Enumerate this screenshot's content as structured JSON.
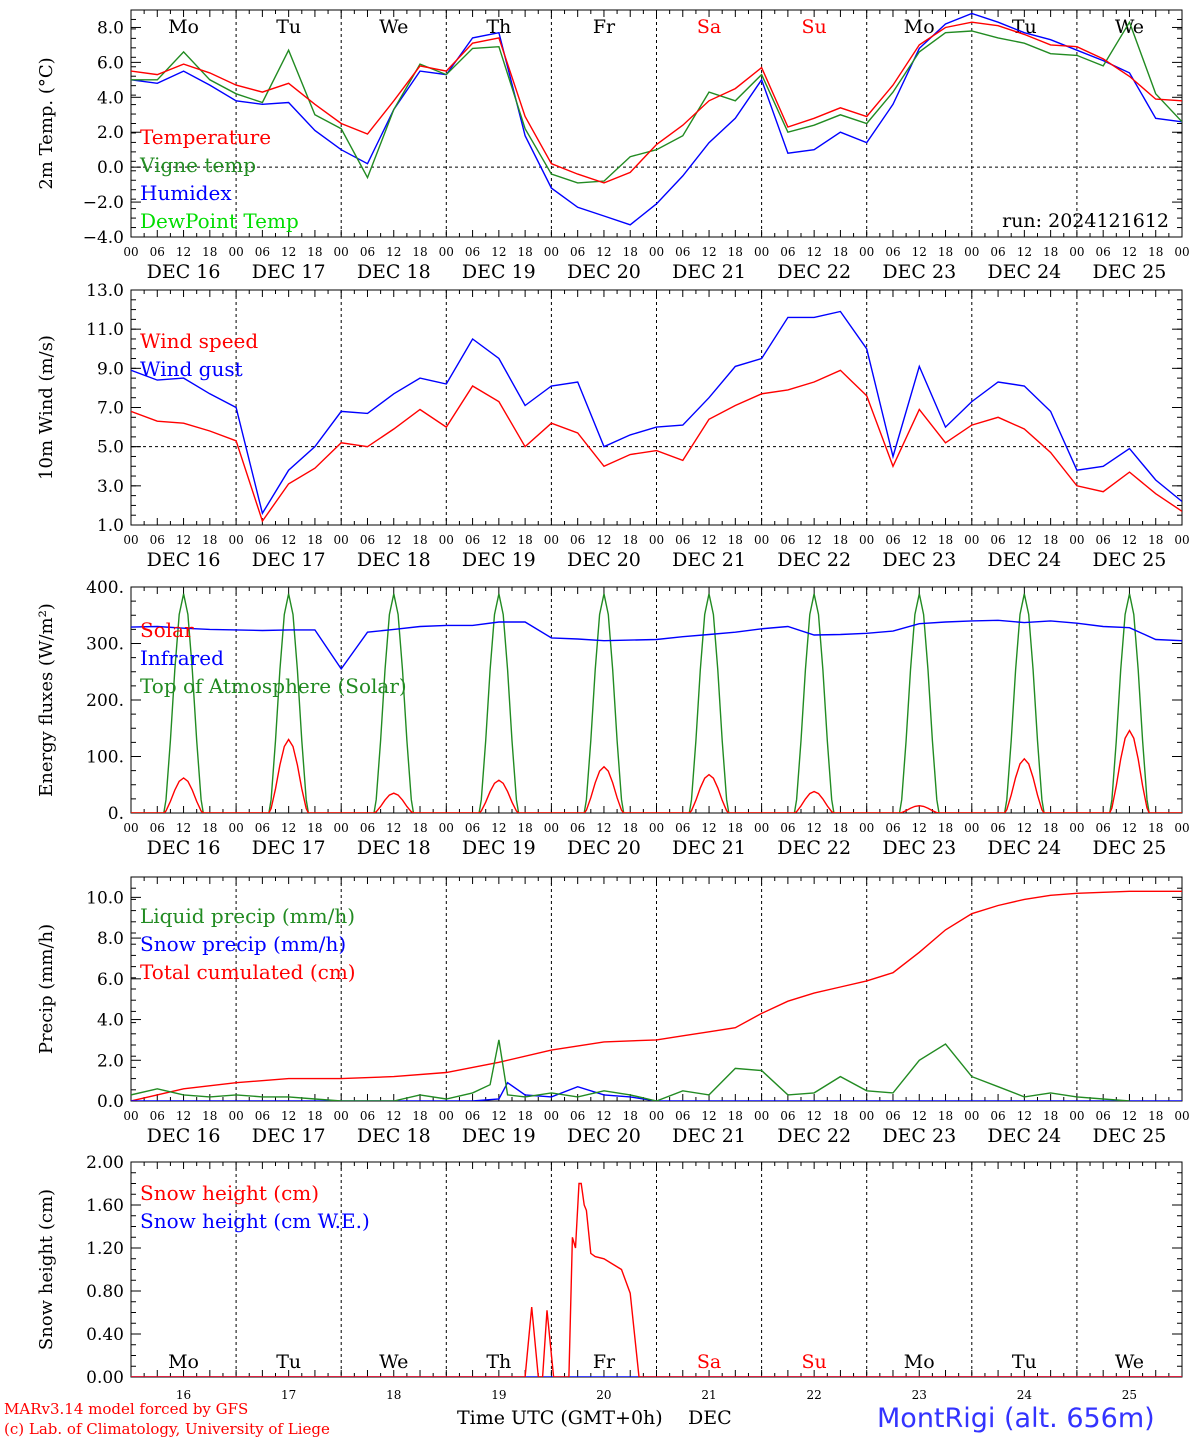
{
  "chart_data": {
    "station": "MontRigi (alt. 656m)",
    "run": "run: 2024121612",
    "footer": [
      "MARv3.14 model forced by GFS",
      "(c) Lab. of Climatology, University of Liege"
    ],
    "x_title": "Time UTC (GMT+0h)",
    "x_month": "DEC",
    "days": [
      {
        "wd": "Mo",
        "date": "DEC 16",
        "num": "16",
        "weekend": false
      },
      {
        "wd": "Tu",
        "date": "DEC 17",
        "num": "17",
        "weekend": false
      },
      {
        "wd": "We",
        "date": "DEC 18",
        "num": "18",
        "weekend": false
      },
      {
        "wd": "Th",
        "date": "DEC 19",
        "num": "19",
        "weekend": false
      },
      {
        "wd": "Fr",
        "date": "DEC 20",
        "num": "20",
        "weekend": false
      },
      {
        "wd": "Sa",
        "date": "DEC 21",
        "num": "21",
        "weekend": true
      },
      {
        "wd": "Su",
        "date": "DEC 22",
        "num": "22",
        "weekend": true
      },
      {
        "wd": "Mo",
        "date": "DEC 23",
        "num": "23",
        "weekend": false
      },
      {
        "wd": "Tu",
        "date": "DEC 24",
        "num": "24",
        "weekend": false
      },
      {
        "wd": "We",
        "date": "DEC 25",
        "num": "25",
        "weekend": false
      }
    ],
    "hour_labels": [
      "00",
      "06",
      "12",
      "18"
    ],
    "end_hour_label": "00",
    "panels": [
      {
        "type": "line",
        "ylabel": "2m Temp. (°C)",
        "ylim": [
          -4,
          9
        ],
        "yticks": [
          -4,
          -2,
          0,
          2,
          4,
          6,
          8
        ],
        "ytick_labels": [
          "−4.0",
          "−2.0",
          "0.0",
          "2.0",
          "4.0",
          "6.0",
          "8.0"
        ],
        "ref_line": 0,
        "show_weekdays": true,
        "show_run": true,
        "series": [
          {
            "name": "Temperature",
            "color": "#ff0000",
            "t": [
              0,
              6,
              12,
              18,
              24,
              30,
              36,
              42,
              48,
              54,
              60,
              66,
              72,
              78,
              84,
              90,
              96,
              102,
              108,
              114,
              120,
              126,
              132,
              138,
              144,
              150,
              156,
              162,
              168,
              174,
              180,
              186,
              192,
              198,
              204,
              210,
              216,
              222,
              228,
              234,
              240
            ],
            "v": [
              5.5,
              5.3,
              5.9,
              5.4,
              4.7,
              4.3,
              4.8,
              3.6,
              2.5,
              1.9,
              3.8,
              5.8,
              5.5,
              7.1,
              7.4,
              2.9,
              0.2,
              -0.4,
              -0.9,
              -0.3,
              1.3,
              2.4,
              3.8,
              4.5,
              5.7,
              2.3,
              2.8,
              3.4,
              2.9,
              4.7,
              7.0,
              8.0,
              8.3,
              8.1,
              7.6,
              7.0,
              6.9,
              6.2,
              5.2,
              3.9,
              3.8
            ]
          },
          {
            "name": "Vigne temp",
            "color": "#228b22",
            "t": [
              0,
              6,
              12,
              18,
              24,
              30,
              36,
              42,
              48,
              54,
              60,
              66,
              72,
              78,
              84,
              90,
              96,
              102,
              108,
              114,
              120,
              126,
              132,
              138,
              144,
              150,
              156,
              162,
              168,
              174,
              180,
              186,
              192,
              198,
              204,
              210,
              216,
              222,
              228,
              234,
              240
            ],
            "v": [
              5.0,
              5.0,
              6.6,
              5.0,
              4.2,
              3.7,
              6.7,
              3.0,
              2.2,
              -0.6,
              3.3,
              5.9,
              5.3,
              6.8,
              6.9,
              2.2,
              -0.4,
              -0.9,
              -0.8,
              0.6,
              1.0,
              1.8,
              4.3,
              3.8,
              5.3,
              2.0,
              2.4,
              3.0,
              2.5,
              4.3,
              6.6,
              7.7,
              7.8,
              7.4,
              7.1,
              6.5,
              6.4,
              5.8,
              8.3,
              4.2,
              2.6
            ]
          },
          {
            "name": "Humidex",
            "color": "#0000ff",
            "t": [
              0,
              6,
              12,
              18,
              24,
              30,
              36,
              42,
              48,
              54,
              60,
              66,
              72,
              78,
              84,
              90,
              96,
              102,
              108,
              114,
              120,
              126,
              132,
              138,
              144,
              150,
              156,
              162,
              168,
              174,
              180,
              186,
              192,
              198,
              204,
              210,
              216,
              222,
              228,
              234,
              240
            ],
            "v": [
              5.0,
              4.8,
              5.5,
              4.7,
              3.8,
              3.6,
              3.7,
              2.1,
              1.0,
              0.2,
              3.3,
              5.5,
              5.3,
              7.4,
              7.7,
              1.8,
              -1.2,
              -2.3,
              -2.8,
              -3.3,
              -2.1,
              -0.5,
              1.4,
              2.8,
              5.0,
              0.8,
              1.0,
              2.0,
              1.4,
              3.6,
              6.8,
              8.2,
              8.8,
              8.3,
              7.7,
              7.3,
              6.7,
              6.1,
              5.4,
              2.8,
              2.6
            ]
          },
          {
            "name": "DewPoint Temp",
            "color": "#00dd00",
            "t": [],
            "v": []
          }
        ]
      },
      {
        "type": "line",
        "ylabel": "10m Wind (m/s)",
        "ylim": [
          1,
          13
        ],
        "yticks": [
          1,
          3,
          5,
          7,
          9,
          11,
          13
        ],
        "ytick_labels": [
          "1.0",
          "3.0",
          "5.0",
          "7.0",
          "9.0",
          "11.0",
          "13.0"
        ],
        "ref_line": 5,
        "series": [
          {
            "name": "Wind speed",
            "color": "#ff0000",
            "t": [
              0,
              6,
              12,
              18,
              24,
              30,
              36,
              42,
              48,
              54,
              60,
              66,
              72,
              78,
              84,
              90,
              96,
              102,
              108,
              114,
              120,
              126,
              132,
              138,
              144,
              150,
              156,
              162,
              168,
              174,
              180,
              186,
              192,
              198,
              204,
              210,
              216,
              222,
              228,
              234,
              240
            ],
            "v": [
              6.8,
              6.3,
              6.2,
              5.8,
              5.3,
              1.2,
              3.1,
              3.9,
              5.2,
              5.0,
              5.9,
              6.9,
              6.0,
              8.1,
              7.3,
              5.0,
              6.2,
              5.7,
              4.0,
              4.6,
              4.8,
              4.3,
              6.4,
              7.1,
              7.7,
              7.9,
              8.3,
              8.9,
              7.6,
              4.0,
              6.9,
              5.2,
              6.1,
              6.5,
              5.9,
              4.7,
              3.0,
              2.7,
              3.7,
              2.6,
              1.7
            ]
          },
          {
            "name": "Wind gust",
            "color": "#0000ff",
            "t": [
              0,
              6,
              12,
              18,
              24,
              30,
              36,
              42,
              48,
              54,
              60,
              66,
              72,
              78,
              84,
              90,
              96,
              102,
              108,
              114,
              120,
              126,
              132,
              138,
              144,
              150,
              156,
              162,
              168,
              174,
              180,
              186,
              192,
              198,
              204,
              210,
              216,
              222,
              228,
              234,
              240
            ],
            "v": [
              8.9,
              8.4,
              8.5,
              7.7,
              7.0,
              1.6,
              3.8,
              5.0,
              6.8,
              6.7,
              7.7,
              8.5,
              8.2,
              10.5,
              9.5,
              7.1,
              8.1,
              8.3,
              5.0,
              5.6,
              6.0,
              6.1,
              7.5,
              9.1,
              9.5,
              11.6,
              11.6,
              11.9,
              10.0,
              4.5,
              9.1,
              6.0,
              7.3,
              8.3,
              8.1,
              6.8,
              3.8,
              4.0,
              4.9,
              3.3,
              2.2
            ]
          }
        ]
      },
      {
        "type": "line",
        "ylabel": "Energy fluxes (W/m²)",
        "ylim": [
          0,
          400
        ],
        "yticks": [
          0,
          100,
          200,
          300,
          400
        ],
        "ytick_labels": [
          "0.",
          "100.",
          "200.",
          "300.",
          "400."
        ],
        "series": [
          {
            "name": "Solar",
            "color": "#ff0000",
            "diurnal": true,
            "peaks": [
              62,
              130,
              35,
              58,
              82,
              68,
              38,
              13,
              96,
              146
            ]
          },
          {
            "name": "Infrared",
            "color": "#0000ff",
            "t": [
              0,
              6,
              12,
              18,
              24,
              30,
              36,
              42,
              48,
              54,
              60,
              66,
              72,
              78,
              84,
              90,
              96,
              102,
              108,
              114,
              120,
              126,
              132,
              138,
              144,
              150,
              156,
              162,
              168,
              174,
              180,
              186,
              192,
              198,
              204,
              210,
              216,
              222,
              228,
              234,
              240
            ],
            "v": [
              329,
              330,
              327,
              325,
              324,
              323,
              324,
              324,
              255,
              320,
              325,
              330,
              332,
              332,
              338,
              338,
              310,
              308,
              305,
              306,
              307,
              312,
              316,
              320,
              326,
              330,
              315,
              316,
              318,
              322,
              335,
              338,
              340,
              341,
              337,
              340,
              336,
              330,
              328,
              307,
              305
            ]
          },
          {
            "name": "Top of Atmosphere (Solar)",
            "color": "#228b22",
            "diurnal": true,
            "peaks": [
              388,
              388,
              388,
              388,
              388,
              388,
              388,
              388,
              388,
              388
            ]
          }
        ]
      },
      {
        "type": "line",
        "ylabel": "Precip (mm/h)",
        "ylim": [
          0,
          11
        ],
        "yticks": [
          0,
          2,
          4,
          6,
          8,
          10
        ],
        "ytick_labels": [
          "0.0",
          "2.0",
          "4.0",
          "6.0",
          "8.0",
          "10.0"
        ],
        "series": [
          {
            "name": "Liquid precip (mm/h)",
            "color": "#228b22",
            "t": [
              0,
              6,
              12,
              18,
              24,
              30,
              36,
              42,
              48,
              54,
              60,
              66,
              72,
              78,
              82,
              84,
              86,
              90,
              96,
              102,
              108,
              114,
              120,
              126,
              132,
              138,
              144,
              150,
              156,
              162,
              168,
              174,
              180,
              186,
              192,
              198,
              204,
              210,
              216,
              222,
              228,
              234,
              240
            ],
            "v": [
              0.3,
              0.6,
              0.3,
              0.2,
              0.3,
              0.2,
              0.2,
              0.1,
              0.0,
              0.0,
              0.0,
              0.3,
              0.1,
              0.4,
              0.8,
              3.0,
              0.3,
              0.2,
              0.4,
              0.2,
              0.5,
              0.3,
              0.0,
              0.5,
              0.3,
              1.6,
              1.5,
              0.3,
              0.4,
              1.2,
              0.5,
              0.4,
              2.0,
              2.8,
              1.2,
              0.7,
              0.2,
              0.4,
              0.2,
              0.1,
              0.0
            ]
          },
          {
            "name": "Snow precip (mm/h)",
            "color": "#0000ff",
            "t": [
              0,
              78,
              84,
              86,
              90,
              96,
              102,
              108,
              114,
              120,
              126,
              132,
              138,
              144,
              240
            ],
            "v": [
              0,
              0,
              0.1,
              0.9,
              0.3,
              0.2,
              0.7,
              0.3,
              0.2,
              0.0,
              0.0,
              0.0,
              0.0,
              0.0,
              0
            ]
          },
          {
            "name": "Total cumulated (cm)",
            "color": "#ff0000",
            "t": [
              0,
              12,
              24,
              36,
              48,
              60,
              72,
              84,
              96,
              108,
              120,
              126,
              132,
              138,
              144,
              150,
              156,
              162,
              168,
              174,
              180,
              186,
              192,
              198,
              204,
              210,
              216,
              222,
              228,
              234,
              240
            ],
            "v": [
              0.0,
              0.6,
              0.9,
              1.1,
              1.1,
              1.2,
              1.4,
              1.9,
              2.5,
              2.9,
              3.0,
              3.2,
              3.4,
              3.6,
              4.3,
              4.9,
              5.3,
              5.6,
              5.9,
              6.3,
              7.3,
              8.4,
              9.2,
              9.6,
              9.9,
              10.1,
              10.2,
              10.25,
              10.3,
              10.3,
              10.3
            ]
          }
        ]
      },
      {
        "type": "line",
        "ylabel": "Snow height (cm)",
        "ylim": [
          0,
          2
        ],
        "yticks": [
          0,
          0.4,
          0.8,
          1.2,
          1.6,
          2.0
        ],
        "ytick_labels": [
          "0.00",
          "0.40",
          "0.80",
          "1.20",
          "1.60",
          "2.00"
        ],
        "show_weekdays_bottom": true,
        "series": [
          {
            "name": "Snow height (cm)",
            "color": "#ff0000",
            "t": [
              0,
              90,
              91.5,
              93,
              94,
              95,
              96.5,
              98,
              100,
              100.8,
              101.5,
              102.3,
              102.8,
              103.5,
              104,
              105,
              106,
              108,
              110,
              112,
              114,
              116,
              116.5,
              240
            ],
            "v": [
              0,
              0,
              0.65,
              0,
              0,
              0.62,
              0,
              0,
              0,
              1.3,
              1.2,
              1.8,
              1.8,
              1.6,
              1.55,
              1.15,
              1.12,
              1.1,
              1.05,
              1.0,
              0.78,
              0,
              0,
              0
            ]
          },
          {
            "name": "Snow height (cm W.E.)",
            "color": "#0000ff",
            "t": [
              0,
              240
            ],
            "v": [
              0,
              0
            ]
          }
        ]
      }
    ]
  }
}
